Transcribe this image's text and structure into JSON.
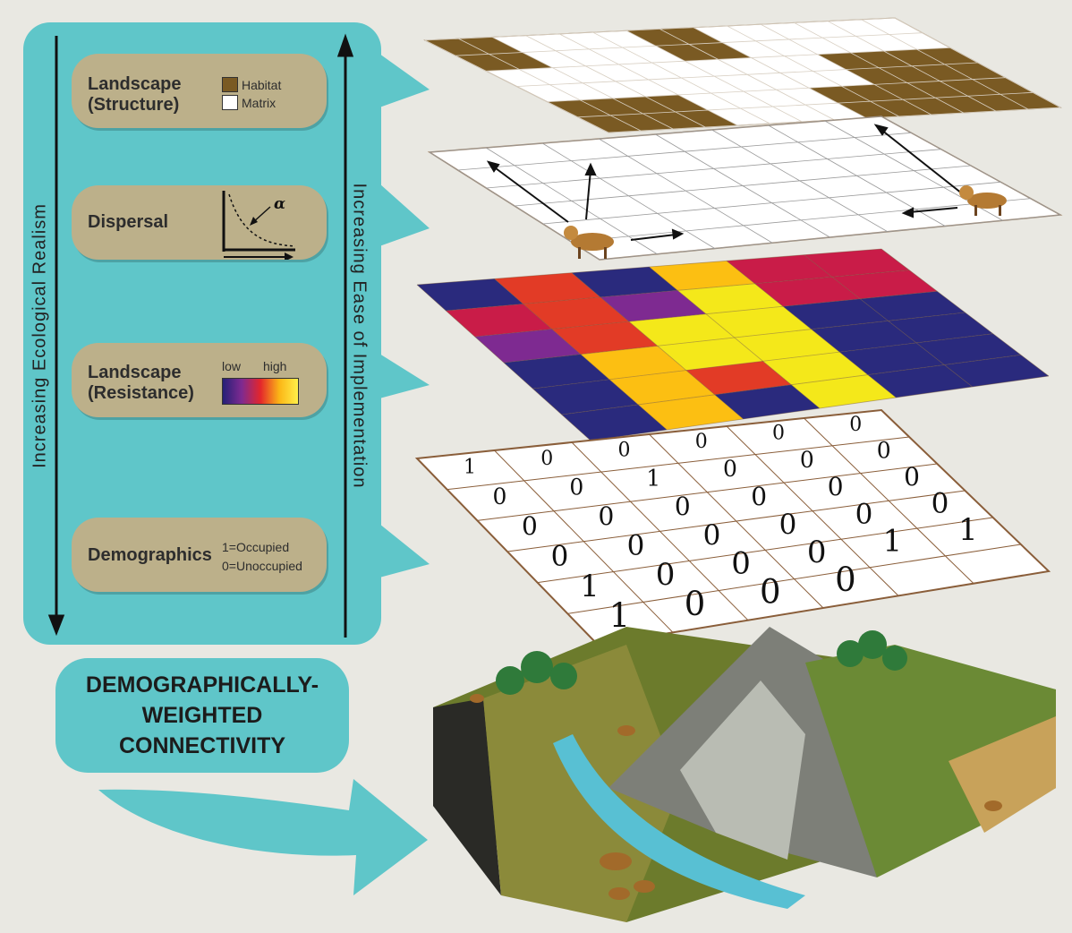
{
  "cards": {
    "structure": {
      "title": "Landscape\n(Structure)",
      "legend": [
        "Habitat",
        "Matrix"
      ]
    },
    "dispersal": {
      "title": "Dispersal",
      "symbol": "α"
    },
    "resistance": {
      "title": "Landscape\n(Resistance)",
      "low": "low",
      "high": "high"
    },
    "demographics": {
      "title": "Demographics",
      "legend": [
        "1=Occupied",
        "0=Unoccupied"
      ]
    }
  },
  "axes": {
    "left": "Increasing Ecological Realism",
    "right": "Increasing Ease of Implementation"
  },
  "result": {
    "title": "DEMOGRAPHICALLY-\nWEIGHTED\nCONNECTIVITY"
  },
  "grids": {
    "structure": [
      [
        1,
        0,
        0,
        1,
        0,
        0,
        0
      ],
      [
        0,
        0,
        0,
        0,
        0,
        1,
        1
      ],
      [
        1,
        1,
        0,
        0,
        1,
        1,
        1
      ]
    ],
    "resistance": [
      [
        "#2a2a7d",
        "#e23b26",
        "#2a2a7d",
        "#fcbf12",
        "#c91c48",
        "#c91c48"
      ],
      [
        "#c91c48",
        "#e23b26",
        "#7e2a91",
        "#f4e81a",
        "#c91c48",
        "#c91c48"
      ],
      [
        "#7e2a91",
        "#e23b26",
        "#f4e81a",
        "#f4e81a",
        "#2a2a7d",
        "#2a2a7d"
      ],
      [
        "#2a2a7d",
        "#fcbf12",
        "#f4e81a",
        "#f4e81a",
        "#2a2a7d",
        "#2a2a7d"
      ],
      [
        "#2a2a7d",
        "#fcbf12",
        "#e23b26",
        "#f4e81a",
        "#2a2a7d",
        "#2a2a7d"
      ],
      [
        "#2a2a7d",
        "#fcbf12",
        "#2a2a7d",
        "#f4e81a",
        "#2a2a7d",
        "#2a2a7d"
      ]
    ],
    "occupancy": [
      [
        "1",
        "0",
        "0",
        "0",
        "0",
        "0"
      ],
      [
        "0",
        "0",
        "1",
        "0",
        "0",
        "0"
      ],
      [
        "0",
        "0",
        "0",
        "0",
        "0",
        "0"
      ],
      [
        "0",
        "0",
        "0",
        "0",
        "0",
        "0"
      ],
      [
        "1",
        "0",
        "0",
        "0",
        "1",
        "1"
      ],
      [
        "1",
        "0",
        "0",
        "0",
        "",
        ""
      ]
    ]
  },
  "colors": {
    "panel": "#5fc6c9",
    "card": "#bcb08a",
    "habitat": "#7a5a23",
    "background": "#e9e8e2"
  }
}
